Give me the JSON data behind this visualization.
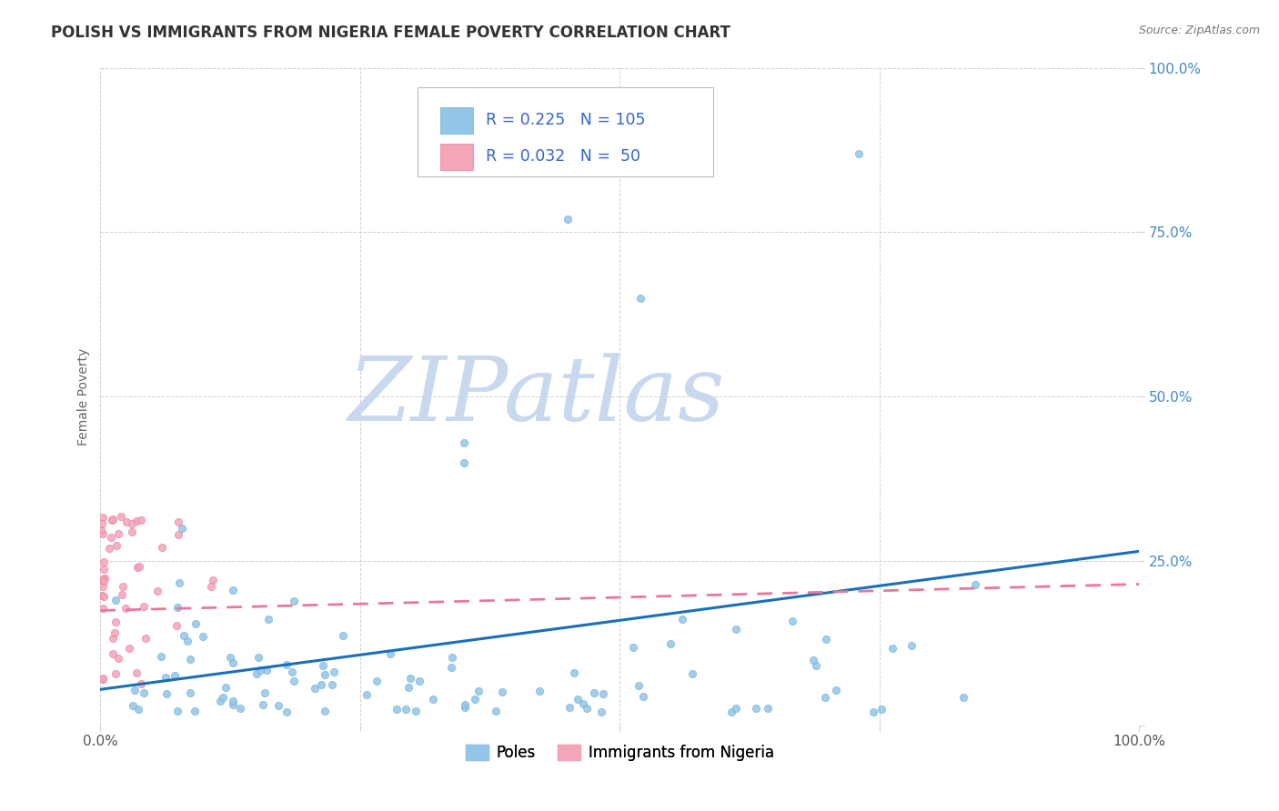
{
  "title": "POLISH VS IMMIGRANTS FROM NIGERIA FEMALE POVERTY CORRELATION CHART",
  "source_text": "Source: ZipAtlas.com",
  "ylabel": "Female Poverty",
  "ytick_values": [
    0.0,
    0.25,
    0.5,
    0.75,
    1.0
  ],
  "ytick_labels_right": [
    "",
    "25.0%",
    "50.0%",
    "75.0%",
    "100.0%"
  ],
  "xtick_values": [
    0.0,
    0.25,
    0.5,
    0.75,
    1.0
  ],
  "xtick_labels": [
    "0.0%",
    "",
    "",
    "",
    "100.0%"
  ],
  "series": [
    {
      "name": "Poles",
      "scatter_color": "#92c5e8",
      "scatter_edge": "#6aaed6",
      "R": "0.225",
      "N": "105",
      "trend_color": "#1a6fba",
      "trend_style": "solid",
      "trend_start_x": 0.0,
      "trend_start_y": 0.055,
      "trend_end_x": 1.0,
      "trend_end_y": 0.265
    },
    {
      "name": "Immigrants from Nigeria",
      "scatter_color": "#f4a5b8",
      "scatter_edge": "#e8789a",
      "R": "0.032",
      "N": " 50",
      "trend_color": "#e8789a",
      "trend_style": "dashed",
      "trend_start_x": 0.0,
      "trend_start_y": 0.175,
      "trend_end_x": 1.0,
      "trend_end_y": 0.215
    }
  ],
  "legend_swatch_colors": [
    "#92c5e8",
    "#f4a5b8"
  ],
  "legend_text_color": "#3366cc",
  "background_color": "#ffffff",
  "grid_color": "#d0d0d0",
  "title_color": "#333333",
  "source_color": "#777777",
  "ylabel_color": "#666666",
  "watermark_text": "ZIPatlas",
  "watermark_color_zip": "#c8d8ee",
  "watermark_color_atlas": "#c8d8ee",
  "right_tick_color": "#4488cc",
  "bottom_tick_color": "#555555"
}
